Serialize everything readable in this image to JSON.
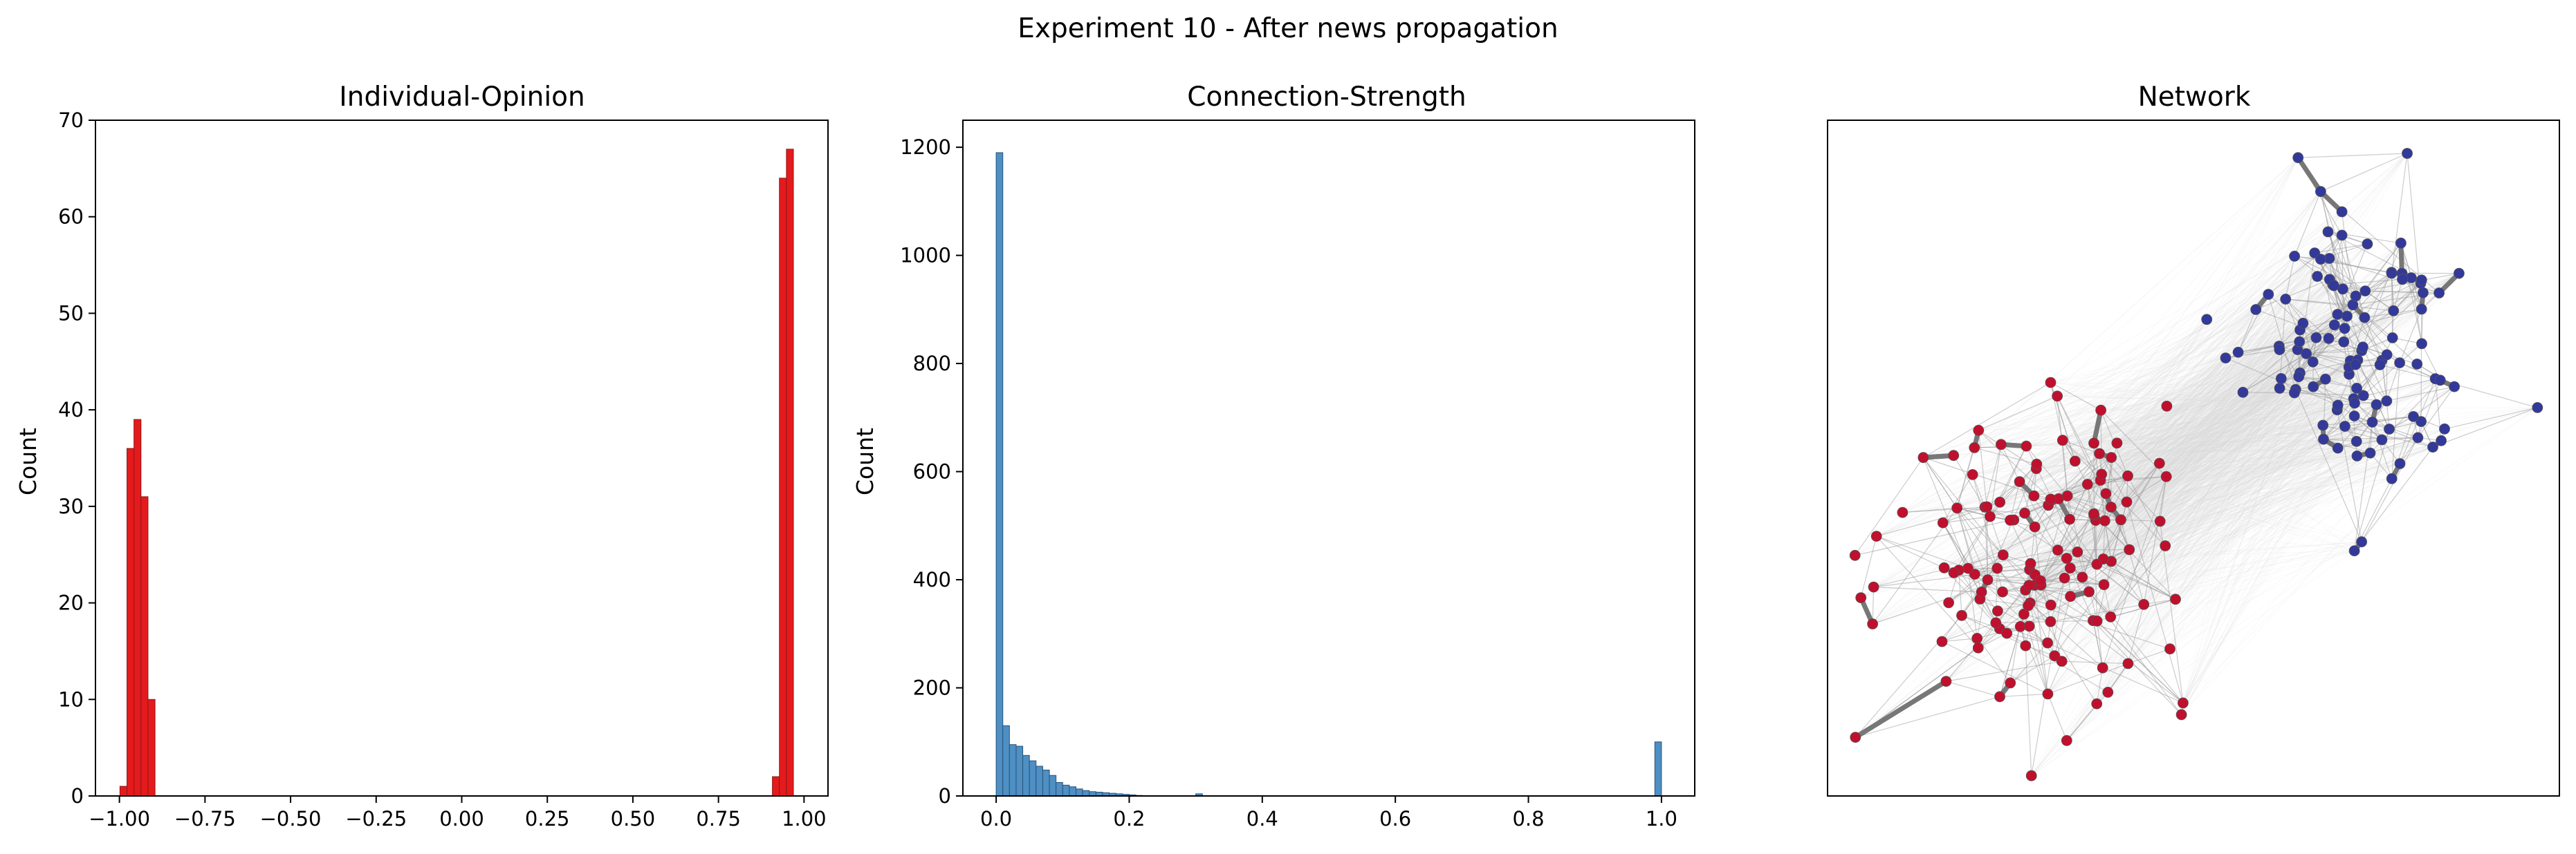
{
  "suptitle": "Experiment 10 - After news propagation",
  "chart_data": [
    {
      "type": "bar",
      "title": "Individual-Opinion",
      "xlabel": "",
      "ylabel": "Count",
      "xlim": [
        -1.07,
        1.07
      ],
      "ylim": [
        0,
        70
      ],
      "xticks": [
        -1.0,
        -0.75,
        -0.5,
        -0.25,
        0.0,
        0.25,
        0.5,
        0.75,
        1.0
      ],
      "xtick_labels": [
        "−1.00",
        "−0.75",
        "−0.50",
        "−0.25",
        "0.00",
        "0.25",
        "0.50",
        "0.75",
        "1.00"
      ],
      "yticks": [
        0,
        10,
        20,
        30,
        40,
        50,
        60,
        70
      ],
      "bin_width": 0.0205,
      "bin_left_edges": [
        -0.9985,
        -0.978,
        -0.9575,
        -0.937,
        -0.9165,
        0.9075,
        0.928,
        0.9485
      ],
      "values": [
        1,
        36,
        39,
        31,
        10,
        2,
        64,
        67
      ],
      "color": "#e41a1c",
      "edgecolor": "#8b1a1a",
      "grid": false
    },
    {
      "type": "bar",
      "title": "Connection-Strength",
      "xlabel": "",
      "ylabel": "Count",
      "xlim": [
        -0.05,
        1.05
      ],
      "ylim": [
        0,
        1250
      ],
      "xticks": [
        0.0,
        0.2,
        0.4,
        0.6,
        0.8,
        1.0
      ],
      "xtick_labels": [
        "0.0",
        "0.2",
        "0.4",
        "0.6",
        "0.8",
        "1.0"
      ],
      "yticks": [
        0,
        200,
        400,
        600,
        800,
        1000,
        1200
      ],
      "bin_width": 0.01,
      "bin_left_edges": [
        0.0,
        0.01,
        0.02,
        0.03,
        0.04,
        0.05,
        0.06,
        0.07,
        0.08,
        0.09,
        0.1,
        0.11,
        0.12,
        0.13,
        0.14,
        0.15,
        0.16,
        0.17,
        0.18,
        0.19,
        0.2,
        0.21,
        0.3,
        0.99
      ],
      "values": [
        1190,
        130,
        95,
        92,
        75,
        65,
        55,
        48,
        38,
        25,
        20,
        17,
        13,
        10,
        8,
        7,
        6,
        5,
        4,
        3,
        2,
        1,
        4,
        100
      ],
      "color": "#4e8fc4",
      "edgecolor": "#2b5278",
      "grid": false
    },
    {
      "type": "network",
      "title": "Network",
      "groups": [
        {
          "color": "#c0102e",
          "count": 130,
          "center": [
            0.28,
            0.66
          ],
          "spread": [
            0.1,
            0.13
          ]
        },
        {
          "color": "#33399a",
          "count": 110,
          "center": [
            0.73,
            0.34
          ],
          "spread": [
            0.075,
            0.11
          ]
        }
      ],
      "axes_visible": false
    }
  ]
}
